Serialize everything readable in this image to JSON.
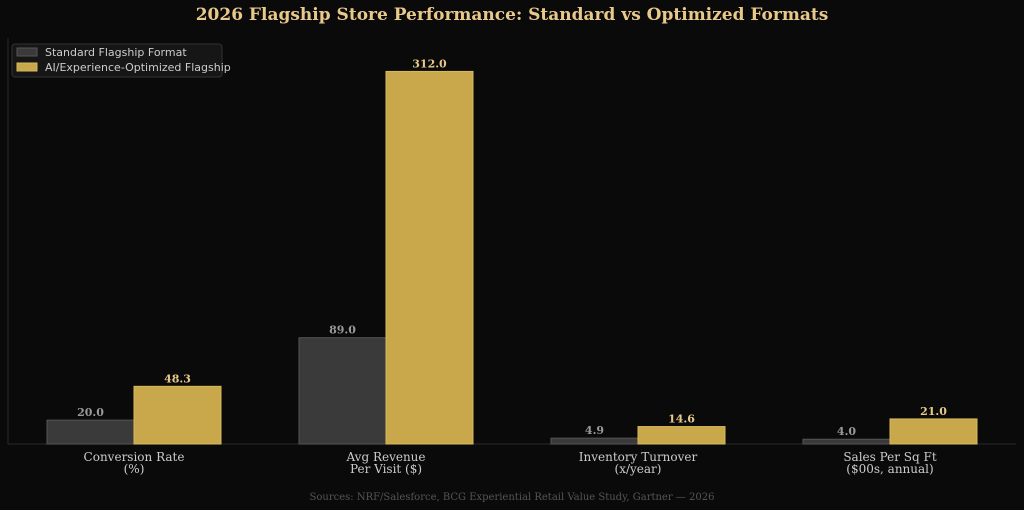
{
  "colors": {
    "background": "#0a0a0a",
    "title": "#e8c98a",
    "standard_bar": "#3a3a3a",
    "standard_edge": "#555555",
    "optimized_bar": "#c9a84c",
    "optimized_edge": "#d8b85c",
    "standard_value_label": "#9a9a9a",
    "optimized_value_label": "#e8c98a",
    "tick_label": "#cccccc",
    "source": "#555555",
    "axis": "#2a2a2a",
    "legend_bg": "#161616",
    "legend_border": "#333333",
    "legend_text": "#cccccc"
  },
  "chart_data": {
    "type": "bar",
    "title": "2026 Flagship Store Performance: Standard vs Optimized Formats",
    "xlabel": "",
    "ylabel": "",
    "ylim": [
      0,
      340
    ],
    "grid": false,
    "legend_position": "top-left",
    "categories": [
      [
        "Conversion Rate",
        "(%)"
      ],
      [
        "Avg Revenue",
        "Per Visit ($)"
      ],
      [
        "Inventory Turnover",
        "(x/year)"
      ],
      [
        "Sales Per Sq Ft",
        "($00s, annual)"
      ]
    ],
    "series": [
      {
        "name": "Standard Flagship Format",
        "values": [
          20.0,
          89.0,
          4.9,
          4.0
        ],
        "labels": [
          "20.0",
          "89.0",
          "4.9",
          "4.0"
        ]
      },
      {
        "name": "AI/Experience-Optimized Flagship",
        "values": [
          48.3,
          312.0,
          14.6,
          21.0
        ],
        "labels": [
          "48.3",
          "312.0",
          "14.6",
          "21.0"
        ]
      }
    ],
    "source": "Sources: NRF/Salesforce, BCG Experiential Retail Value Study, Gartner — 2026"
  }
}
